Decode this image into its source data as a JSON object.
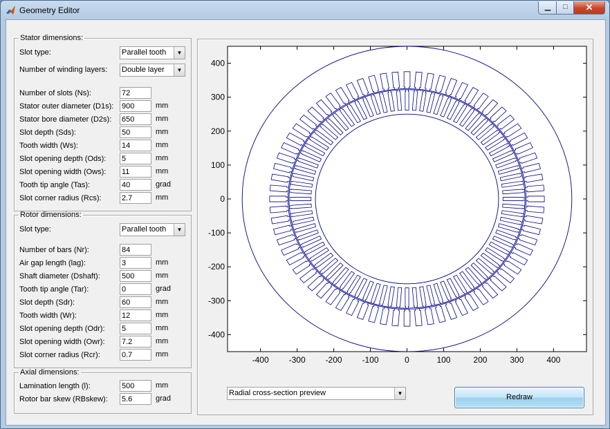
{
  "window": {
    "title": "Geometry Editor",
    "minimize_glyph": "▁",
    "maximize_glyph": "□",
    "close_glyph": "✕"
  },
  "stator": {
    "legend": "Stator dimensions:",
    "slot_type_label": "Slot type:",
    "slot_type_value": "Parallel tooth",
    "layers_label": "Number of winding layers:",
    "layers_value": "Double layer",
    "fields": [
      {
        "label": "Number of slots (Ns):",
        "value": "72",
        "unit": ""
      },
      {
        "label": "Stator outer diameter (D1s):",
        "value": "900",
        "unit": "mm"
      },
      {
        "label": "Stator bore diameter (D2s):",
        "value": "650",
        "unit": "mm"
      },
      {
        "label": "Slot depth (Sds):",
        "value": "50",
        "unit": "mm"
      },
      {
        "label": "Tooth width (Ws):",
        "value": "14",
        "unit": "mm"
      },
      {
        "label": "Slot opening depth (Ods):",
        "value": "5",
        "unit": "mm"
      },
      {
        "label": "Slot opening width (Ows):",
        "value": "11",
        "unit": "mm"
      },
      {
        "label": "Tooth tip angle (Tas):",
        "value": "40",
        "unit": "grad"
      },
      {
        "label": "Slot corner radius (Rcs):",
        "value": "2.7",
        "unit": "mm"
      }
    ]
  },
  "rotor": {
    "legend": "Rotor dimensions:",
    "slot_type_label": "Slot type:",
    "slot_type_value": "Parallel tooth",
    "fields": [
      {
        "label": "Number of bars (Nr):",
        "value": "84",
        "unit": ""
      },
      {
        "label": "Air gap length (lag):",
        "value": "3",
        "unit": "mm"
      },
      {
        "label": "Shaft diameter (Dshaft):",
        "value": "500",
        "unit": "mm"
      },
      {
        "label": "Tooth tip angle (Tar):",
        "value": "0",
        "unit": "grad"
      },
      {
        "label": "Slot depth (Sdr):",
        "value": "60",
        "unit": "mm"
      },
      {
        "label": "Tooth width (Wr):",
        "value": "12",
        "unit": "mm"
      },
      {
        "label": "Slot opening depth (Odr):",
        "value": "5",
        "unit": "mm"
      },
      {
        "label": "Slot opening width (Owr):",
        "value": "7.2",
        "unit": "mm"
      },
      {
        "label": "Slot corner radius (Rcr):",
        "value": "0.7",
        "unit": "mm"
      }
    ]
  },
  "axial": {
    "legend": "Axial dimensions:",
    "fields": [
      {
        "label": "Lamination length (l):",
        "value": "500",
        "unit": "mm"
      },
      {
        "label": "Rotor bar skew (RBskew):",
        "value": "5.6",
        "unit": "grad"
      }
    ]
  },
  "plot": {
    "x_ticks": [
      "-400",
      "-300",
      "-200",
      "-100",
      "0",
      "100",
      "200",
      "300",
      "400"
    ],
    "y_ticks": [
      "400",
      "300",
      "200",
      "100",
      "0",
      "-100",
      "-200",
      "-300",
      "-400"
    ],
    "xlim": [
      -490,
      490
    ],
    "ylim": [
      -450,
      450
    ],
    "line_color": "#00008b"
  },
  "preview_select": {
    "value": "Radial cross-section preview"
  },
  "redraw_label": "Redraw"
}
